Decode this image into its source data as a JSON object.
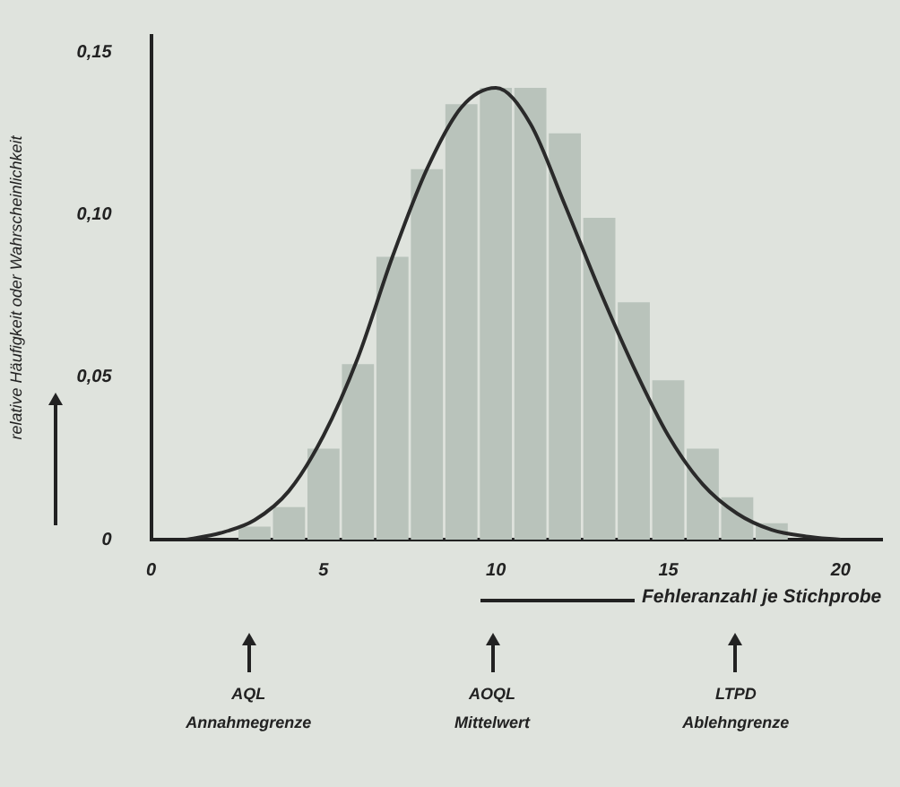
{
  "chart_data": {
    "type": "histogram",
    "ylabel": "relative Häufigkeit oder Wahrscheinlichkeit",
    "xlabel": "Fehleranzahl je Stichprobe",
    "series": [
      {
        "color": "#b9c3bb",
        "bins": [
          2.5,
          3.5,
          4.5,
          5.5,
          6.5,
          7.5,
          8.5,
          9.5,
          10.5,
          11.5,
          12.5,
          13.5,
          14.5,
          15.5,
          16.5,
          17.5,
          18.5
        ],
        "values": [
          0.004,
          0.01,
          0.028,
          0.054,
          0.087,
          0.114,
          0.134,
          0.139,
          0.139,
          0.125,
          0.099,
          0.073,
          0.049,
          0.028,
          0.013,
          0.005
        ]
      },
      {
        "type": "line",
        "color": "#2a2a2a",
        "x": [
          1,
          2,
          3,
          4,
          5,
          6,
          7,
          8,
          9,
          10,
          11,
          12,
          13,
          14,
          15,
          16,
          17,
          18,
          19,
          20
        ],
        "values": [
          0,
          0.002,
          0.006,
          0.015,
          0.032,
          0.056,
          0.087,
          0.114,
          0.133,
          0.139,
          0.128,
          0.103,
          0.077,
          0.053,
          0.032,
          0.017,
          0.008,
          0.003,
          0.001,
          0
        ]
      }
    ],
    "xlim": [
      0,
      21.2
    ],
    "xticks": [
      0,
      5,
      10,
      15,
      20
    ],
    "ylim": [
      0,
      0.155
    ],
    "yticks": [
      {
        "value": 0,
        "label": "0"
      },
      {
        "value": 0.05,
        "label": "0,05"
      },
      {
        "value": 0.1,
        "label": "0,10"
      },
      {
        "value": 0.15,
        "label": "0,15"
      }
    ],
    "grid": false,
    "legend": false,
    "annotations": [
      "AQL\nAnnahmegrenze",
      "AOQL\nMittelwert",
      "LTPD\nAblehngrenze"
    ]
  }
}
